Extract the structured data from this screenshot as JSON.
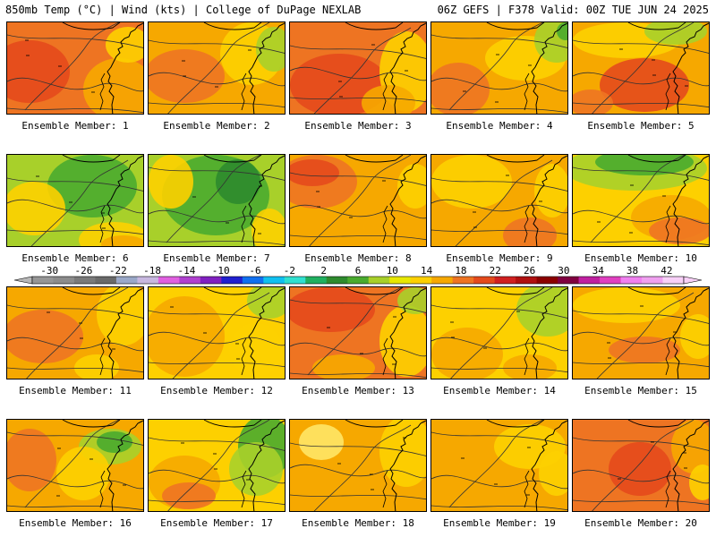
{
  "header": {
    "left": "850mb Temp (°C) | Wind (kts) | College of DuPage NEXLAB",
    "right": "06Z GEFS | F378 Valid: 00Z TUE JUN 24 2025"
  },
  "caption_prefix": "Ensemble Member:",
  "members": [
    {
      "id": "1",
      "label": "Ensemble Member: 1",
      "bg": "#ee7422",
      "blobs": [
        {
          "c": "#e44a1c",
          "x": 25,
          "y": 55,
          "rx": 45,
          "ry": 35
        },
        {
          "c": "#f6a800",
          "x": 125,
          "y": 75,
          "rx": 40,
          "ry": 35
        },
        {
          "c": "#fdd000",
          "x": 135,
          "y": 25,
          "rx": 25,
          "ry": 20
        }
      ]
    },
    {
      "id": "2",
      "label": "Ensemble Member: 2",
      "bg": "#f6a800",
      "blobs": [
        {
          "c": "#ee7422",
          "x": 40,
          "y": 60,
          "rx": 45,
          "ry": 30
        },
        {
          "c": "#fdd000",
          "x": 115,
          "y": 35,
          "rx": 35,
          "ry": 35
        },
        {
          "c": "#a8d02a",
          "x": 140,
          "y": 30,
          "rx": 20,
          "ry": 25
        }
      ]
    },
    {
      "id": "3",
      "label": "Ensemble Member: 3",
      "bg": "#ee7422",
      "blobs": [
        {
          "c": "#e44a1c",
          "x": 55,
          "y": 70,
          "rx": 55,
          "ry": 35
        },
        {
          "c": "#fdd000",
          "x": 130,
          "y": 55,
          "rx": 30,
          "ry": 45
        },
        {
          "c": "#f6a800",
          "x": 110,
          "y": 90,
          "rx": 30,
          "ry": 20
        }
      ]
    },
    {
      "id": "4",
      "label": "Ensemble Member: 4",
      "bg": "#f6a800",
      "blobs": [
        {
          "c": "#ee7422",
          "x": 30,
          "y": 75,
          "rx": 35,
          "ry": 30
        },
        {
          "c": "#fdd000",
          "x": 105,
          "y": 40,
          "rx": 45,
          "ry": 25
        },
        {
          "c": "#a8d02a",
          "x": 140,
          "y": 20,
          "rx": 25,
          "ry": 25
        },
        {
          "c": "#4aab2f",
          "x": 150,
          "y": 10,
          "rx": 10,
          "ry": 10
        }
      ]
    },
    {
      "id": "5",
      "label": "Ensemble Member: 5",
      "bg": "#f6a800",
      "blobs": [
        {
          "c": "#e44a1c",
          "x": 80,
          "y": 70,
          "rx": 50,
          "ry": 30
        },
        {
          "c": "#fdd000",
          "x": 60,
          "y": 20,
          "rx": 60,
          "ry": 20
        },
        {
          "c": "#a8d02a",
          "x": 115,
          "y": 10,
          "rx": 35,
          "ry": 15
        },
        {
          "c": "#ee7422",
          "x": 20,
          "y": 90,
          "rx": 25,
          "ry": 15
        }
      ]
    },
    {
      "id": "6",
      "label": "Ensemble Member: 6",
      "bg": "#a8d02a",
      "blobs": [
        {
          "c": "#4aab2f",
          "x": 95,
          "y": 35,
          "rx": 50,
          "ry": 35
        },
        {
          "c": "#fdd000",
          "x": 30,
          "y": 60,
          "rx": 35,
          "ry": 30
        },
        {
          "c": "#fdd000",
          "x": 120,
          "y": 95,
          "rx": 40,
          "ry": 20
        },
        {
          "c": "#f6a800",
          "x": 130,
          "y": 100,
          "rx": 25,
          "ry": 10
        }
      ]
    },
    {
      "id": "7",
      "label": "Ensemble Member: 7",
      "bg": "#a8d02a",
      "blobs": [
        {
          "c": "#4aab2f",
          "x": 75,
          "y": 45,
          "rx": 60,
          "ry": 45
        },
        {
          "c": "#2e8b2e",
          "x": 100,
          "y": 30,
          "rx": 25,
          "ry": 25
        },
        {
          "c": "#fdd000",
          "x": 25,
          "y": 30,
          "rx": 25,
          "ry": 30
        },
        {
          "c": "#fdd000",
          "x": 135,
          "y": 85,
          "rx": 20,
          "ry": 25
        }
      ]
    },
    {
      "id": "8",
      "label": "Ensemble Member: 8",
      "bg": "#f6a800",
      "blobs": [
        {
          "c": "#ee7422",
          "x": 30,
          "y": 30,
          "rx": 45,
          "ry": 30
        },
        {
          "c": "#e44a1c",
          "x": 25,
          "y": 20,
          "rx": 30,
          "ry": 15
        },
        {
          "c": "#fdd000",
          "x": 140,
          "y": 35,
          "rx": 20,
          "ry": 25
        }
      ]
    },
    {
      "id": "9",
      "label": "Ensemble Member: 9",
      "bg": "#f6a800",
      "blobs": [
        {
          "c": "#fdd000",
          "x": 45,
          "y": 30,
          "rx": 45,
          "ry": 30
        },
        {
          "c": "#fdd000",
          "x": 135,
          "y": 40,
          "rx": 20,
          "ry": 30
        },
        {
          "c": "#ee7422",
          "x": 110,
          "y": 90,
          "rx": 30,
          "ry": 20
        }
      ]
    },
    {
      "id": "10",
      "label": "Ensemble Member: 10",
      "bg": "#fdd000",
      "blobs": [
        {
          "c": "#a8d02a",
          "x": 70,
          "y": 15,
          "rx": 80,
          "ry": 25
        },
        {
          "c": "#4aab2f",
          "x": 80,
          "y": 8,
          "rx": 55,
          "ry": 15
        },
        {
          "c": "#f6a800",
          "x": 110,
          "y": 70,
          "rx": 45,
          "ry": 25
        },
        {
          "c": "#ee7422",
          "x": 120,
          "y": 85,
          "rx": 35,
          "ry": 15
        }
      ]
    },
    {
      "id": "11",
      "label": "Ensemble Member: 11",
      "bg": "#f6a800",
      "blobs": [
        {
          "c": "#ee7422",
          "x": 40,
          "y": 55,
          "rx": 45,
          "ry": 30
        },
        {
          "c": "#fdd000",
          "x": 130,
          "y": 30,
          "rx": 30,
          "ry": 35
        },
        {
          "c": "#fdd000",
          "x": 100,
          "y": 90,
          "rx": 25,
          "ry": 15
        }
      ]
    },
    {
      "id": "12",
      "label": "Ensemble Member: 12",
      "bg": "#fdd000",
      "blobs": [
        {
          "c": "#f6a800",
          "x": 40,
          "y": 55,
          "rx": 45,
          "ry": 45
        },
        {
          "c": "#a8d02a",
          "x": 135,
          "y": 15,
          "rx": 25,
          "ry": 20
        },
        {
          "c": "#fdd000",
          "x": 120,
          "y": 70,
          "rx": 30,
          "ry": 30
        }
      ]
    },
    {
      "id": "13",
      "label": "Ensemble Member: 13",
      "bg": "#ee7422",
      "blobs": [
        {
          "c": "#e44a1c",
          "x": 45,
          "y": 25,
          "rx": 50,
          "ry": 25
        },
        {
          "c": "#fdd000",
          "x": 130,
          "y": 60,
          "rx": 30,
          "ry": 40
        },
        {
          "c": "#a8d02a",
          "x": 140,
          "y": 15,
          "rx": 20,
          "ry": 15
        },
        {
          "c": "#f6a800",
          "x": 60,
          "y": 90,
          "rx": 35,
          "ry": 15
        }
      ]
    },
    {
      "id": "14",
      "label": "Ensemble Member: 14",
      "bg": "#fdd000",
      "blobs": [
        {
          "c": "#a8d02a",
          "x": 130,
          "y": 25,
          "rx": 35,
          "ry": 30
        },
        {
          "c": "#f6a800",
          "x": 40,
          "y": 75,
          "rx": 40,
          "ry": 30
        },
        {
          "c": "#f6a800",
          "x": 110,
          "y": 90,
          "rx": 30,
          "ry": 15
        }
      ]
    },
    {
      "id": "15",
      "label": "Ensemble Member: 15",
      "bg": "#f6a800",
      "blobs": [
        {
          "c": "#fdd000",
          "x": 60,
          "y": 20,
          "rx": 60,
          "ry": 20
        },
        {
          "c": "#ee7422",
          "x": 80,
          "y": 70,
          "rx": 40,
          "ry": 15
        },
        {
          "c": "#fdd000",
          "x": 140,
          "y": 55,
          "rx": 20,
          "ry": 25
        }
      ]
    },
    {
      "id": "16",
      "label": "Ensemble Member: 16",
      "bg": "#f6a800",
      "blobs": [
        {
          "c": "#ee7422",
          "x": 25,
          "y": 45,
          "rx": 30,
          "ry": 35
        },
        {
          "c": "#a8d02a",
          "x": 115,
          "y": 30,
          "rx": 35,
          "ry": 20
        },
        {
          "c": "#4aab2f",
          "x": 120,
          "y": 25,
          "rx": 20,
          "ry": 12
        },
        {
          "c": "#fdd000",
          "x": 85,
          "y": 60,
          "rx": 30,
          "ry": 30
        }
      ]
    },
    {
      "id": "17",
      "label": "Ensemble Member: 17",
      "bg": "#fdd000",
      "blobs": [
        {
          "c": "#4aab2f",
          "x": 130,
          "y": 30,
          "rx": 30,
          "ry": 35
        },
        {
          "c": "#a8d02a",
          "x": 120,
          "y": 55,
          "rx": 30,
          "ry": 30
        },
        {
          "c": "#f6a800",
          "x": 40,
          "y": 70,
          "rx": 40,
          "ry": 30
        },
        {
          "c": "#ee7422",
          "x": 45,
          "y": 85,
          "rx": 30,
          "ry": 15
        }
      ]
    },
    {
      "id": "18",
      "label": "Ensemble Member: 18",
      "bg": "#f6a800",
      "blobs": [
        {
          "c": "#fdd000",
          "x": 130,
          "y": 35,
          "rx": 30,
          "ry": 40
        },
        {
          "c": "#ffe566",
          "x": 35,
          "y": 25,
          "rx": 25,
          "ry": 20
        }
      ]
    },
    {
      "id": "19",
      "label": "Ensemble Member: 19",
      "bg": "#f6a800",
      "blobs": [
        {
          "c": "#fdd000",
          "x": 110,
          "y": 30,
          "rx": 40,
          "ry": 25
        },
        {
          "c": "#fdd000",
          "x": 140,
          "y": 60,
          "rx": 20,
          "ry": 25
        }
      ]
    },
    {
      "id": "20",
      "label": "Ensemble Member: 20",
      "bg": "#ee7422",
      "blobs": [
        {
          "c": "#e44a1c",
          "x": 75,
          "y": 55,
          "rx": 35,
          "ry": 30
        },
        {
          "c": "#f6a800",
          "x": 135,
          "y": 30,
          "rx": 25,
          "ry": 30
        },
        {
          "c": "#fdd000",
          "x": 145,
          "y": 70,
          "rx": 15,
          "ry": 20
        }
      ]
    }
  ],
  "colorbar": {
    "labels": [
      "-30",
      "-26",
      "-22",
      "-18",
      "-14",
      "-10",
      "-6",
      "-2",
      "2",
      "6",
      "10",
      "14",
      "18",
      "22",
      "26",
      "30",
      "34",
      "38",
      "42"
    ],
    "colors": [
      "#969696",
      "#8c8c8c",
      "#7a7a7a",
      "#6a6a6a",
      "#9aa8c8",
      "#c8b8e0",
      "#e060e0",
      "#b040d0",
      "#8020c0",
      "#2020d0",
      "#1070f0",
      "#10c0f0",
      "#30e0d0",
      "#20b060",
      "#2e8b2e",
      "#4aab2f",
      "#a8d02a",
      "#e8e800",
      "#fdd000",
      "#f6a800",
      "#ee7422",
      "#e44a1c",
      "#d02020",
      "#b01010",
      "#8b0000",
      "#800040",
      "#c020a0",
      "#e040c0",
      "#f080f0",
      "#f0a0f0",
      "#f8d0f8"
    ]
  }
}
